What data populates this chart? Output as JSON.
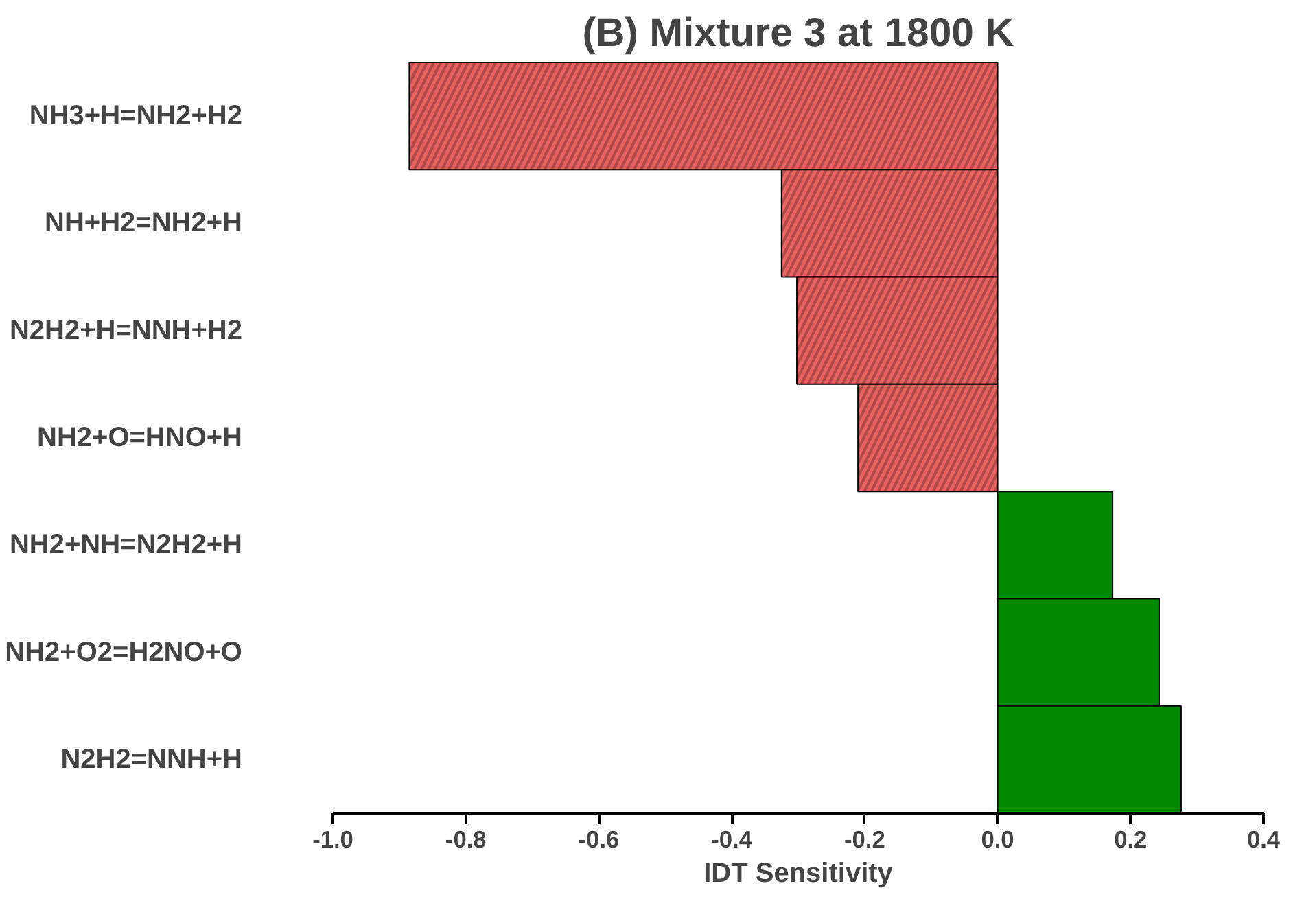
{
  "chart_data": {
    "type": "bar",
    "orientation": "horizontal",
    "title": "(B) Mixture 3 at 1800 K",
    "xlabel": "IDT Sensitivity",
    "categories": [
      "NH3+H=NH2+H2",
      "NH+H2=NH2+H",
      "N2H2+H=NNH+H2",
      "NH2+O=HNO+H",
      "NH2+NH=N2H2+H",
      "NH2+O2=H2NO+O",
      "N2H2=NNH+H"
    ],
    "values": [
      -0.885,
      -0.325,
      -0.302,
      -0.21,
      0.173,
      0.243,
      0.276
    ],
    "colors": [
      "#e8625f",
      "#e8625f",
      "#e8625f",
      "#e8625f",
      "#008a00",
      "#008a00",
      "#008a00"
    ],
    "xlim": [
      -1.0,
      0.4
    ],
    "xticks": [
      {
        "value": -1.0,
        "label": "-1.0"
      },
      {
        "value": -0.8,
        "label": "-0.8"
      },
      {
        "value": -0.6,
        "label": "-0.6"
      },
      {
        "value": -0.4,
        "label": "-0.4"
      },
      {
        "value": -0.2,
        "label": "-0.2"
      },
      {
        "value": 0.0,
        "label": "0.0"
      },
      {
        "value": 0.2,
        "label": "0.2"
      },
      {
        "value": 0.4,
        "label": "0.4"
      }
    ],
    "grid": false
  }
}
